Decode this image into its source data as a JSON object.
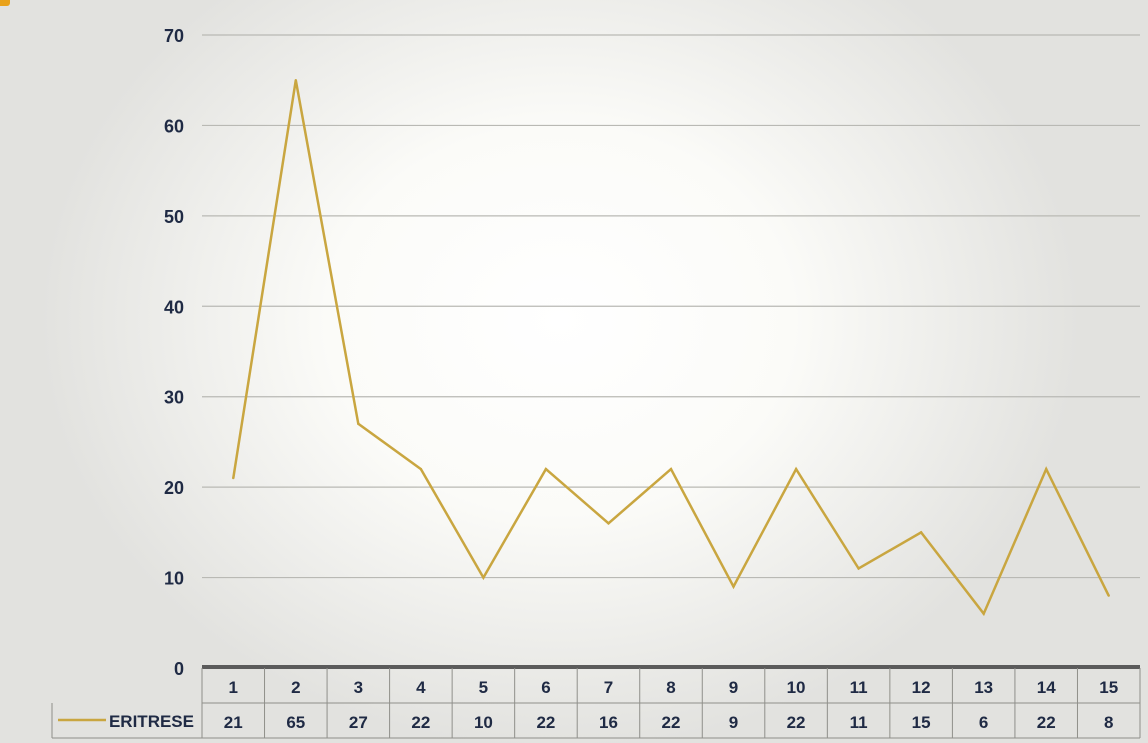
{
  "chart_data": {
    "type": "line",
    "title": "",
    "xlabel": "",
    "ylabel": "",
    "categories": [
      "1",
      "2",
      "3",
      "4",
      "5",
      "6",
      "7",
      "8",
      "9",
      "10",
      "11",
      "12",
      "13",
      "14",
      "15"
    ],
    "series": [
      {
        "name": "ERITRESE",
        "values": [
          21,
          65,
          27,
          22,
          10,
          22,
          16,
          22,
          9,
          22,
          11,
          15,
          6,
          22,
          8
        ],
        "color": "#c9a640"
      }
    ],
    "ylim": [
      0,
      70
    ],
    "yticks": [
      "0",
      "10",
      "20",
      "30",
      "40",
      "50",
      "60",
      "70"
    ],
    "grid": true,
    "data_table": true,
    "legend_placement": "data-table-row"
  }
}
